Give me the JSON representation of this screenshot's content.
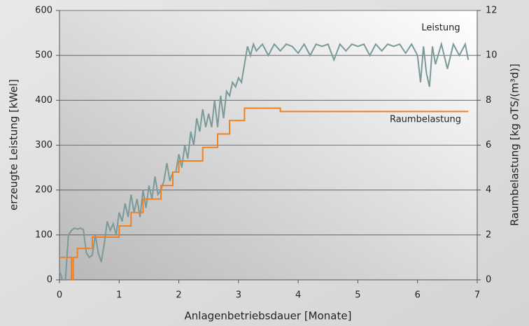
{
  "chart_data": {
    "type": "line",
    "xlabel": "Anlagenbetriebsdauer [Monate]",
    "ylabel": "erzeugte Leistung [kWel]",
    "y2label": "Raumbelastung [kg oTS/(m³d)]",
    "xlim": [
      0,
      7
    ],
    "xticks": [
      0,
      1,
      2,
      3,
      4,
      5,
      6,
      7
    ],
    "ylim": [
      0,
      600
    ],
    "yticks": [
      0,
      100,
      200,
      300,
      400,
      500,
      600
    ],
    "y2lim": [
      0,
      12
    ],
    "y2ticks": [
      0,
      2,
      4,
      6,
      8,
      10,
      12
    ],
    "grid": true,
    "annotations": [
      "Leistung",
      "Raumbelastung"
    ],
    "series": [
      {
        "name": "Leistung",
        "color": "#7a9a9a",
        "x": [
          0,
          0.05,
          0.1,
          0.15,
          0.2,
          0.25,
          0.3,
          0.35,
          0.4,
          0.45,
          0.5,
          0.55,
          0.6,
          0.65,
          0.7,
          0.75,
          0.8,
          0.85,
          0.9,
          0.95,
          1.0,
          1.05,
          1.1,
          1.15,
          1.2,
          1.25,
          1.3,
          1.35,
          1.4,
          1.45,
          1.5,
          1.55,
          1.6,
          1.65,
          1.7,
          1.75,
          1.8,
          1.85,
          1.9,
          1.95,
          2.0,
          2.05,
          2.1,
          2.15,
          2.2,
          2.25,
          2.3,
          2.35,
          2.4,
          2.45,
          2.5,
          2.55,
          2.6,
          2.65,
          2.7,
          2.75,
          2.8,
          2.85,
          2.9,
          2.95,
          3.0,
          3.05,
          3.1,
          3.15,
          3.2,
          3.25,
          3.3,
          3.4,
          3.5,
          3.6,
          3.7,
          3.8,
          3.9,
          4.0,
          4.1,
          4.2,
          4.3,
          4.4,
          4.5,
          4.6,
          4.7,
          4.8,
          4.9,
          5.0,
          5.1,
          5.2,
          5.3,
          5.4,
          5.5,
          5.6,
          5.7,
          5.8,
          5.9,
          6.0,
          6.05,
          6.1,
          6.15,
          6.2,
          6.25,
          6.3,
          6.4,
          6.5,
          6.6,
          6.7,
          6.8,
          6.85
        ],
        "values": [
          20,
          0,
          0,
          100,
          110,
          115,
          113,
          115,
          112,
          60,
          50,
          55,
          100,
          60,
          40,
          80,
          130,
          110,
          125,
          100,
          150,
          130,
          170,
          140,
          190,
          150,
          180,
          140,
          200,
          160,
          210,
          180,
          230,
          190,
          200,
          220,
          260,
          220,
          240,
          240,
          280,
          250,
          300,
          270,
          330,
          300,
          360,
          330,
          380,
          340,
          370,
          340,
          400,
          340,
          410,
          360,
          420,
          410,
          440,
          430,
          450,
          440,
          480,
          520,
          500,
          525,
          510,
          525,
          500,
          525,
          510,
          525,
          520,
          505,
          525,
          500,
          525,
          520,
          525,
          490,
          525,
          510,
          525,
          520,
          525,
          500,
          525,
          510,
          525,
          520,
          525,
          505,
          525,
          500,
          440,
          520,
          460,
          430,
          520,
          480,
          525,
          470,
          525,
          500,
          525,
          490
        ]
      },
      {
        "name": "Raumbelastung",
        "color": "#f08020",
        "axis": "y2",
        "x": [
          0,
          0.2,
          0.2,
          0.23,
          0.23,
          0.3,
          0.3,
          0.55,
          0.55,
          1.0,
          1.0,
          1.2,
          1.2,
          1.4,
          1.4,
          1.7,
          1.7,
          1.9,
          1.9,
          2.0,
          2.0,
          2.4,
          2.4,
          2.65,
          2.65,
          2.85,
          2.85,
          3.1,
          3.1,
          3.7,
          3.7,
          6.85
        ],
        "values": [
          1.0,
          1.0,
          0,
          0,
          1.0,
          1.0,
          1.4,
          1.4,
          1.9,
          1.9,
          2.4,
          2.4,
          3.0,
          3.0,
          3.6,
          3.6,
          4.2,
          4.2,
          4.8,
          4.8,
          5.3,
          5.3,
          5.9,
          5.9,
          6.5,
          6.5,
          7.1,
          7.1,
          7.65,
          7.65,
          7.5,
          7.5
        ]
      }
    ]
  }
}
